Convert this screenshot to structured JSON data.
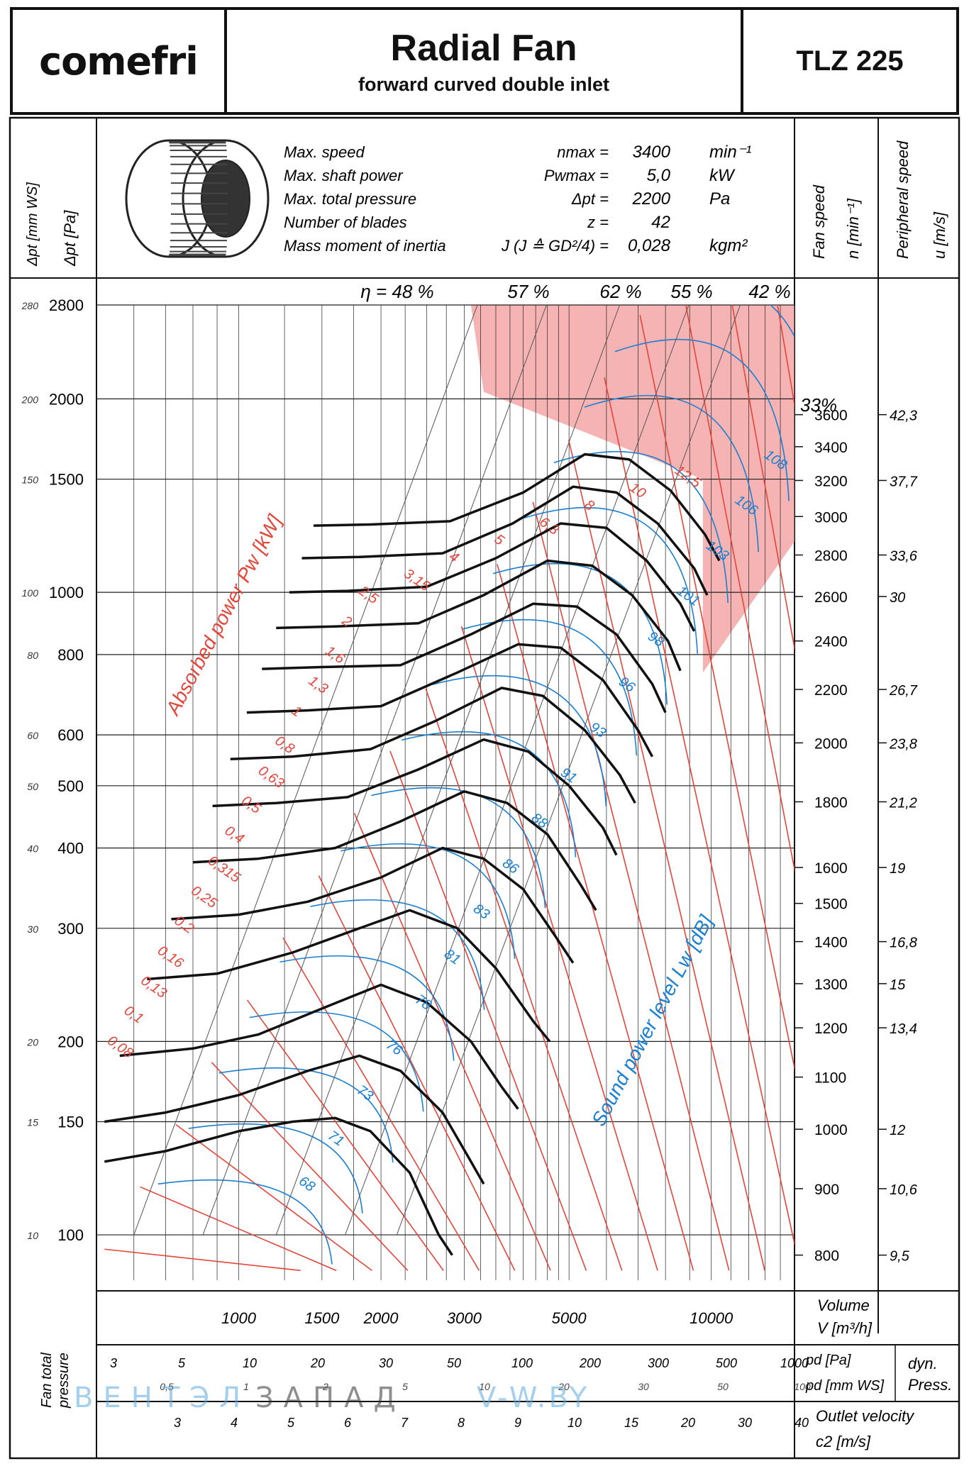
{
  "header": {
    "brand": "comefri",
    "title": "Radial Fan",
    "subtitle": "forward curved double inlet",
    "model": "TLZ 225"
  },
  "axis_labels": {
    "dpt_mmws": "Δpt [mm WS]",
    "dpt_pa": "Δpt [Pa]",
    "fan_speed": "Fan speed",
    "fan_speed_unit": "n [min⁻¹]",
    "peripheral_speed": "Peripheral speed",
    "peripheral_speed_unit": "u [m/s]",
    "volume": "Volume",
    "volume_unit": "V [m³/h]",
    "pd_pa": "pd [Pa]",
    "pd_mmws": "pd [mm WS]",
    "dyn_press_1": "dyn.",
    "dyn_press_2": "Press.",
    "outlet_velocity": "Outlet velocity",
    "outlet_velocity_unit": "c2 [m/s]",
    "fan_total_pressure_1": "Fan total",
    "fan_total_pressure_2": "pressure"
  },
  "specs": [
    {
      "label": "Max. speed",
      "symbol": "nmax =",
      "value": "3400",
      "unit": "min⁻¹"
    },
    {
      "label": "Max. shaft power",
      "symbol": "Pwmax =",
      "value": "5,0",
      "unit": "kW"
    },
    {
      "label": "Max. total pressure",
      "symbol": "Δpt =",
      "value": "2200",
      "unit": "Pa"
    },
    {
      "label": "Number of blades",
      "symbol": "z =",
      "value": "42",
      "unit": ""
    },
    {
      "label": "Mass moment of inertia",
      "symbol": "J (J ≙ GD²/4) =",
      "value": "0,028",
      "unit": "kgm²"
    }
  ],
  "watermark": {
    "left": "ВЕНТЭЛ",
    "middle": "ЗАПАД",
    "right": "V-W.BY"
  },
  "chart_data": {
    "type": "line",
    "title": "Radial Fan TLZ 225",
    "xlabel": "Volume V [m³/h]",
    "ylabel": "Δpt [Pa]",
    "xscale": "log",
    "yscale": "log",
    "xlim": [
      500,
      15000
    ],
    "ylim": [
      85,
      2800
    ],
    "x_ticks": [
      1000,
      1500,
      2000,
      3000,
      5000,
      10000
    ],
    "x_tick_labels": [
      "1000",
      "1500",
      "2000",
      "3000",
      "5000",
      "10000"
    ],
    "y_ticks_pa": [
      100,
      150,
      200,
      300,
      400,
      500,
      600,
      800,
      1000,
      1500,
      2000,
      2800
    ],
    "y_ticks_mmws": [
      10,
      15,
      20,
      30,
      40,
      50,
      60,
      80,
      100,
      150,
      200,
      280
    ],
    "speeds": [
      {
        "n": "800",
        "u": "9,5",
        "dpt_at_ref": 93
      },
      {
        "n": "900",
        "u": "10,6",
        "dpt_at_ref": 118
      },
      {
        "n": "1000",
        "u": "12",
        "dpt_at_ref": 146
      },
      {
        "n": "1100",
        "u": "",
        "dpt_at_ref": 176
      },
      {
        "n": "1200",
        "u": "13,4",
        "dpt_at_ref": 210
      },
      {
        "n": "1300",
        "u": "15",
        "dpt_at_ref": 246
      },
      {
        "n": "1400",
        "u": "16,8",
        "dpt_at_ref": 286
      },
      {
        "n": "1500",
        "u": "",
        "dpt_at_ref": 328
      },
      {
        "n": "1600",
        "u": "19",
        "dpt_at_ref": 373
      },
      {
        "n": "1800",
        "u": "21,2",
        "dpt_at_ref": 472
      },
      {
        "n": "2000",
        "u": "23,8",
        "dpt_at_ref": 583
      },
      {
        "n": "2200",
        "u": "26,7",
        "dpt_at_ref": 706
      },
      {
        "n": "2400",
        "u": "",
        "dpt_at_ref": 840
      },
      {
        "n": "2600",
        "u": "30",
        "dpt_at_ref": 985
      },
      {
        "n": "2800",
        "u": "33,6",
        "dpt_at_ref": 1143
      },
      {
        "n": "3000",
        "u": "",
        "dpt_at_ref": 1312
      },
      {
        "n": "3200",
        "u": "37,7",
        "dpt_at_ref": 1493
      },
      {
        "n": "3400",
        "u": "",
        "dpt_at_ref": 1685
      },
      {
        "n": "3600",
        "u": "42,3",
        "dpt_at_ref": 1890
      }
    ],
    "fan_curves": [
      {
        "n": 1000,
        "points": [
          [
            520,
            130
          ],
          [
            700,
            135
          ],
          [
            1000,
            145
          ],
          [
            1300,
            150
          ],
          [
            1600,
            152
          ],
          [
            1900,
            145
          ],
          [
            2300,
            125
          ],
          [
            2650,
            100
          ],
          [
            2830,
            93
          ]
        ]
      },
      {
        "n": 1200,
        "points": [
          [
            520,
            150
          ],
          [
            700,
            155
          ],
          [
            1000,
            165
          ],
          [
            1400,
            180
          ],
          [
            1800,
            190
          ],
          [
            2200,
            180
          ],
          [
            2700,
            155
          ],
          [
            3100,
            130
          ],
          [
            3300,
            120
          ]
        ]
      },
      {
        "n": 1400,
        "points": [
          [
            560,
            190
          ],
          [
            800,
            195
          ],
          [
            1100,
            205
          ],
          [
            1500,
            225
          ],
          [
            2000,
            245
          ],
          [
            2500,
            230
          ],
          [
            3100,
            200
          ],
          [
            3600,
            170
          ],
          [
            3900,
            157
          ]
        ]
      },
      {
        "n": 1600,
        "points": [
          [
            640,
            250
          ],
          [
            900,
            255
          ],
          [
            1300,
            275
          ],
          [
            1800,
            300
          ],
          [
            2300,
            320
          ],
          [
            2900,
            300
          ],
          [
            3500,
            260
          ],
          [
            4200,
            215
          ],
          [
            4550,
            200
          ]
        ]
      },
      {
        "n": 1800,
        "points": [
          [
            720,
            310
          ],
          [
            1000,
            315
          ],
          [
            1400,
            330
          ],
          [
            2000,
            360
          ],
          [
            2700,
            400
          ],
          [
            3300,
            385
          ],
          [
            4000,
            345
          ],
          [
            4700,
            290
          ],
          [
            5100,
            265
          ]
        ]
      },
      {
        "n": 2000,
        "points": [
          [
            800,
            380
          ],
          [
            1100,
            385
          ],
          [
            1600,
            400
          ],
          [
            2200,
            440
          ],
          [
            3000,
            490
          ],
          [
            3700,
            470
          ],
          [
            4500,
            420
          ],
          [
            5300,
            350
          ],
          [
            5700,
            320
          ]
        ]
      },
      {
        "n": 2200,
        "points": [
          [
            880,
            465
          ],
          [
            1200,
            470
          ],
          [
            1700,
            480
          ],
          [
            2400,
            530
          ],
          [
            3300,
            590
          ],
          [
            4100,
            565
          ],
          [
            5000,
            500
          ],
          [
            5900,
            430
          ],
          [
            6300,
            390
          ]
        ]
      },
      {
        "n": 2400,
        "points": [
          [
            960,
            550
          ],
          [
            1300,
            555
          ],
          [
            1900,
            570
          ],
          [
            2600,
            630
          ],
          [
            3600,
            710
          ],
          [
            4400,
            690
          ],
          [
            5400,
            610
          ],
          [
            6400,
            520
          ],
          [
            6900,
            470
          ]
        ]
      },
      {
        "n": 2600,
        "points": [
          [
            1040,
            650
          ],
          [
            1400,
            655
          ],
          [
            2000,
            665
          ],
          [
            2900,
            750
          ],
          [
            3900,
            830
          ],
          [
            4800,
            820
          ],
          [
            5900,
            730
          ],
          [
            7000,
            610
          ],
          [
            7500,
            555
          ]
        ]
      },
      {
        "n": 2800,
        "points": [
          [
            1120,
            760
          ],
          [
            1500,
            765
          ],
          [
            2200,
            770
          ],
          [
            3100,
            860
          ],
          [
            4200,
            960
          ],
          [
            5200,
            950
          ],
          [
            6300,
            860
          ],
          [
            7500,
            720
          ],
          [
            8000,
            650
          ]
        ]
      },
      {
        "n": 3000,
        "points": [
          [
            1200,
            880
          ],
          [
            1600,
            885
          ],
          [
            2400,
            895
          ],
          [
            3300,
            990
          ],
          [
            4500,
            1120
          ],
          [
            5600,
            1100
          ],
          [
            6800,
            990
          ],
          [
            8100,
            840
          ],
          [
            8600,
            755
          ]
        ]
      },
      {
        "n": 3200,
        "points": [
          [
            1280,
            1000
          ],
          [
            1700,
            1005
          ],
          [
            2500,
            1020
          ],
          [
            3500,
            1130
          ],
          [
            4800,
            1280
          ],
          [
            6000,
            1260
          ],
          [
            7300,
            1120
          ],
          [
            8600,
            960
          ],
          [
            9200,
            870
          ]
        ]
      },
      {
        "n": 3400,
        "points": [
          [
            1360,
            1130
          ],
          [
            1800,
            1135
          ],
          [
            2700,
            1150
          ],
          [
            3800,
            1280
          ],
          [
            5100,
            1460
          ],
          [
            6300,
            1430
          ],
          [
            7700,
            1280
          ],
          [
            9200,
            1090
          ],
          [
            9800,
            990
          ]
        ]
      },
      {
        "n": 3600,
        "points": [
          [
            1440,
            1270
          ],
          [
            1900,
            1275
          ],
          [
            2800,
            1290
          ],
          [
            4000,
            1430
          ],
          [
            5400,
            1640
          ],
          [
            6700,
            1610
          ],
          [
            8200,
            1440
          ],
          [
            9700,
            1230
          ],
          [
            10400,
            1120
          ]
        ]
      }
    ],
    "efficiency_labels": [
      {
        "label": "η = 48 %"
      },
      {
        "label": "57 %"
      },
      {
        "label": "62 %"
      },
      {
        "label": "55 %"
      },
      {
        "label": "42 %"
      },
      {
        "label": "33%"
      }
    ],
    "power_labels_kw": [
      "0,08",
      "0,1",
      "0,13",
      "0,16",
      "0,2",
      "0,25",
      "0,315",
      "0,4",
      "0,5",
      "0,63",
      "0,8",
      "1",
      "1,3",
      "1,6",
      "2",
      "2,5",
      "3,15",
      "4",
      "5",
      "6,3",
      "8",
      "10",
      "12,5"
    ],
    "sound_levels_db": [
      "68",
      "71",
      "73",
      "76",
      "78",
      "81",
      "83",
      "86",
      "88",
      "91",
      "93",
      "96",
      "98",
      "101",
      "103",
      "106",
      "108"
    ],
    "annotations": [
      "Absorbed power Pw [kW]",
      "Sound power level Lw [dB]"
    ],
    "bottom_scales": {
      "pd_pa": [
        "3",
        "5",
        "10",
        "20",
        "30",
        "50",
        "100",
        "200",
        "300",
        "500",
        "1000"
      ],
      "pd_mmws": [
        "0,5",
        "1",
        "2",
        "5",
        "10",
        "20",
        "30",
        "50",
        "100"
      ],
      "c2_ms": [
        "3",
        "4",
        "5",
        "6",
        "7",
        "8",
        "9",
        "10",
        "15",
        "20",
        "30",
        "40"
      ]
    },
    "colors": {
      "grid": "#222222",
      "power": "#e2463a",
      "sound": "#1a7fd1",
      "forbidden": "#f5a6a6",
      "fan": "#111111"
    }
  }
}
